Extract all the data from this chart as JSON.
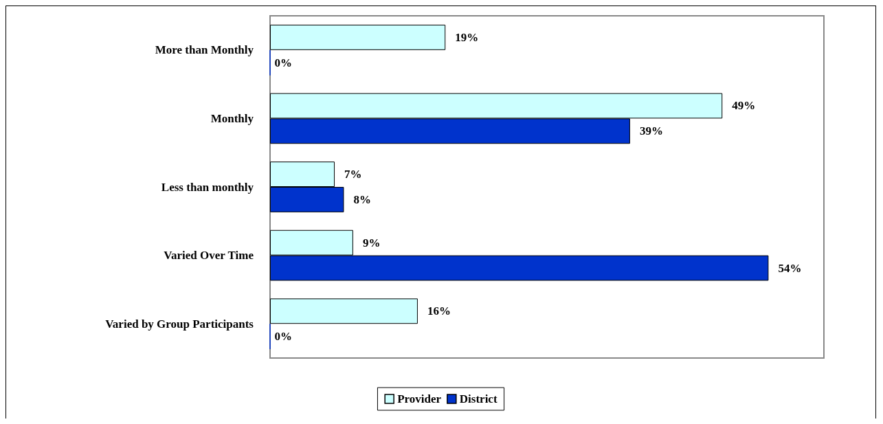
{
  "chart_data": {
    "type": "bar",
    "orientation": "horizontal",
    "categories": [
      "More than Monthly",
      "Monthly",
      "Less than monthly",
      "Varied Over Time",
      "Varied by Group Participants"
    ],
    "series": [
      {
        "name": "Provider",
        "color": "#ccffff",
        "values": [
          19,
          49,
          7,
          9,
          16
        ],
        "value_labels": [
          "19%",
          "49%",
          "7%",
          "9%",
          "16%"
        ]
      },
      {
        "name": "District",
        "color": "#0033cc",
        "values": [
          0,
          39,
          8,
          54,
          0
        ],
        "value_labels": [
          "0%",
          "39%",
          "8%",
          "54%",
          "0%"
        ]
      }
    ],
    "legend": "bottom"
  }
}
